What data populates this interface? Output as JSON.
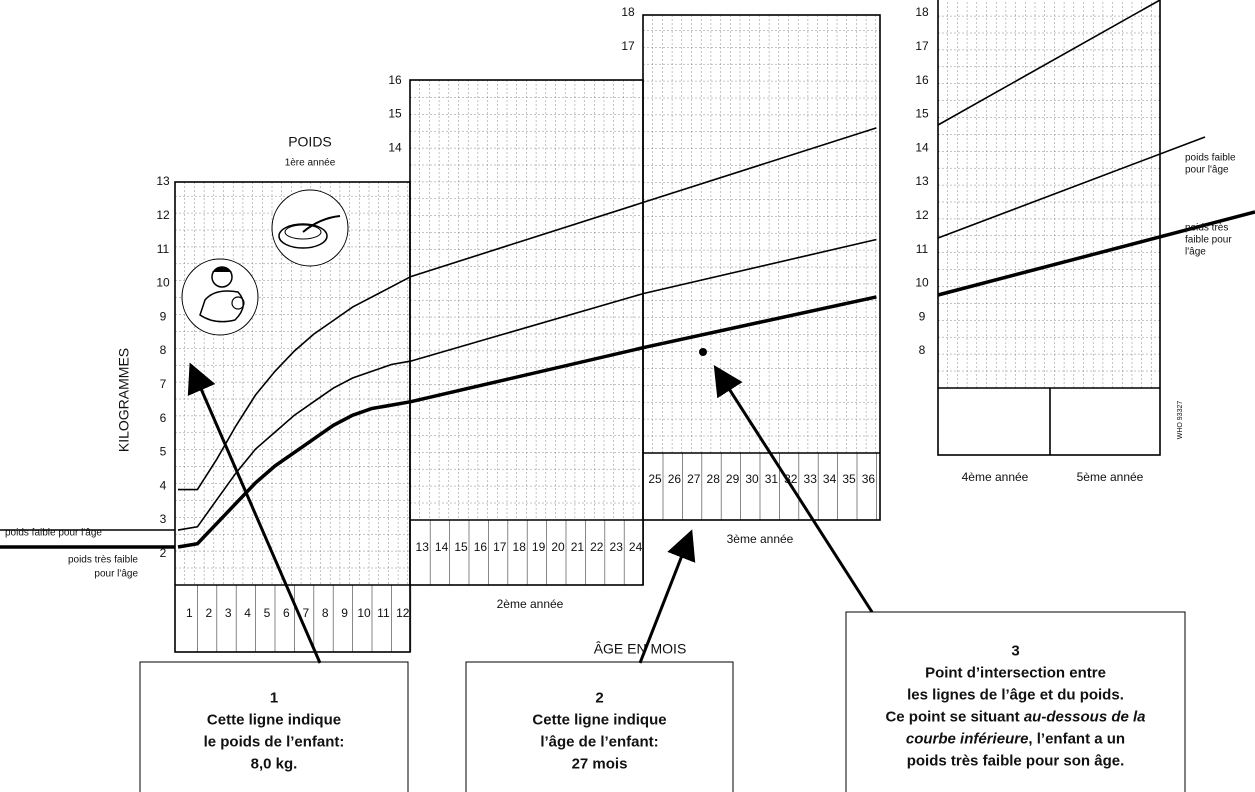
{
  "panel_title": "POIDS",
  "y_axis_label": "KILOGRAMMES",
  "x_axis_label": "ÂGE EN MOIS",
  "year_labels": [
    "1ère année",
    "2ème année",
    "3ème année",
    "4ème année",
    "5ème année"
  ],
  "weight_ticks": {
    "panel1": [
      2,
      3,
      4,
      5,
      6,
      7,
      8,
      9,
      10,
      11,
      12,
      13
    ],
    "panel2": [
      14,
      15,
      16
    ],
    "panel3": [
      17,
      18
    ],
    "panel4": [
      8,
      9,
      10,
      11,
      12,
      13,
      14,
      15,
      16,
      17,
      18
    ]
  },
  "month_ticks": {
    "year1": [
      1,
      2,
      3,
      4,
      5,
      6,
      7,
      8,
      9,
      10,
      11,
      12
    ],
    "year2": [
      13,
      14,
      15,
      16,
      17,
      18,
      19,
      20,
      21,
      22,
      23,
      24
    ],
    "year3": [
      25,
      26,
      27,
      28,
      29,
      30,
      31,
      32,
      33,
      34,
      35,
      36
    ]
  },
  "left_curve_labels": {
    "low": "poids faible pour l'âge",
    "very_low": [
      "poids très faible",
      "pour l'âge"
    ]
  },
  "right_curve_labels": {
    "low": [
      "poids faible",
      "pour l'âge"
    ],
    "very_low": [
      "poids très",
      "faible pour",
      "l'âge"
    ]
  },
  "code": "WHO 93327",
  "callouts": [
    {
      "lines": [
        [
          {
            "text": "1"
          }
        ],
        [
          {
            "text": "Cette ligne indique"
          }
        ],
        [
          {
            "text": "le poids de l’enfant:"
          }
        ],
        [
          {
            "text": "8,0 kg."
          }
        ]
      ]
    },
    {
      "lines": [
        [
          {
            "text": "2"
          }
        ],
        [
          {
            "text": "Cette ligne indique"
          }
        ],
        [
          {
            "text": "l’âge de l’enfant:"
          }
        ],
        [
          {
            "text": "27 mois"
          }
        ]
      ]
    },
    {
      "lines": [
        [
          {
            "text": "3"
          }
        ],
        [
          {
            "text": "Point d’intersection entre"
          }
        ],
        [
          {
            "text": "les lignes de l’âge et du poids."
          }
        ],
        [
          {
            "text": "Ce point se situant "
          },
          {
            "text": "au-dessous de la",
            "italic": true
          }
        ],
        [
          {
            "text": "courbe inférieure",
            "italic": true
          },
          {
            "text": ", l’enfant a un"
          }
        ],
        [
          {
            "text": "poids très faible pour son âge."
          }
        ]
      ]
    }
  ]
}
